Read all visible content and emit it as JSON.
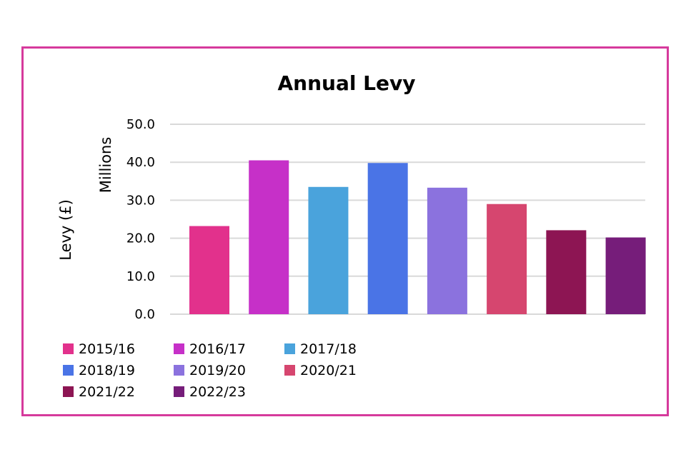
{
  "chart_data": {
    "type": "bar",
    "title": "Annual Levy",
    "xlabel": "",
    "ylabel": "Levy (£)",
    "ylabel_units": "Millions",
    "ylim": [
      0,
      50
    ],
    "yticks": [
      "0.0",
      "10.0",
      "20.0",
      "30.0",
      "40.0",
      "50.0"
    ],
    "categories": [
      "2015/16",
      "2016/17",
      "2017/18",
      "2018/19",
      "2019/20",
      "2020/21",
      "2021/22",
      "2022/23"
    ],
    "values": [
      23.2,
      40.5,
      33.5,
      39.8,
      33.3,
      29.0,
      22.1,
      20.2
    ],
    "colors": [
      "#e2318c",
      "#c630c8",
      "#4aa3dc",
      "#4a74e6",
      "#8b72de",
      "#d6466f",
      "#8d1553",
      "#761d7a"
    ],
    "legend_position": "bottom-left",
    "grid": true
  },
  "frame_color": "#d63a9c"
}
